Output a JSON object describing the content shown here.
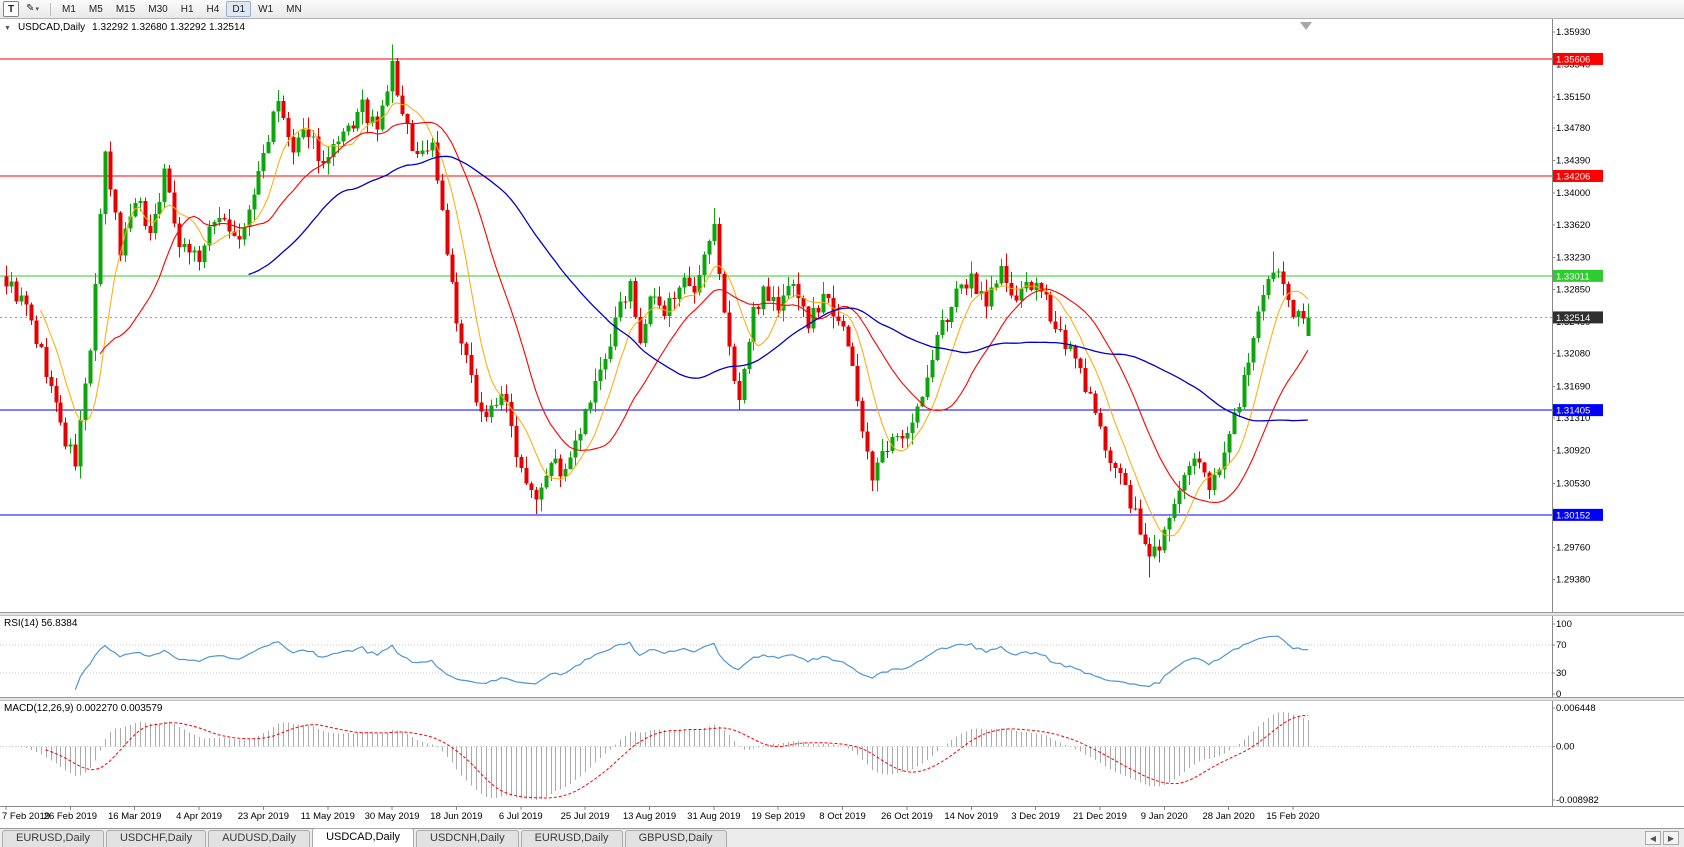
{
  "icons": {
    "collapse_triangle": "▼",
    "pencil": "✎",
    "chevron_down": "▾",
    "scroll_left": "◀",
    "scroll_right": "▶"
  },
  "toolbar": {
    "chart_type_label": "T",
    "timeframes": [
      {
        "label": "M1",
        "active": false
      },
      {
        "label": "M5",
        "active": false
      },
      {
        "label": "M15",
        "active": false
      },
      {
        "label": "M30",
        "active": false
      },
      {
        "label": "H1",
        "active": false
      },
      {
        "label": "H4",
        "active": false
      },
      {
        "label": "D1",
        "active": true
      },
      {
        "label": "W1",
        "active": false
      },
      {
        "label": "MN",
        "active": false
      }
    ]
  },
  "chart": {
    "header_symbol": "USDCAD,Daily",
    "header_ohlc": "1.32292 1.32680 1.32292 1.32514"
  },
  "indicators": {
    "rsi_label": "RSI(14) 56.8384",
    "macd_label": "MACD(12,26,9) 0.002270 0.003579"
  },
  "current_price": {
    "value": 1.32514,
    "label": "1.32514"
  },
  "tabs": [
    {
      "label": "EURUSD,Daily",
      "active": false
    },
    {
      "label": "USDCHF,Daily",
      "active": false
    },
    {
      "label": "AUDUSD,Daily",
      "active": false
    },
    {
      "label": "USDCAD,Daily",
      "active": true
    },
    {
      "label": "USDCNH,Daily",
      "active": false
    },
    {
      "label": "EURUSD,Daily",
      "active": false
    },
    {
      "label": "GBPUSD,Daily",
      "active": false
    }
  ],
  "colors": {
    "candle_up": "#0ca60c",
    "candle_down": "#e60000",
    "ma_fast": "#ffaa00",
    "ma_mid": "#ff0000",
    "ma_slow": "#0000c8",
    "level_red": "#fe0000",
    "level_green": "#2ecc2e",
    "level_blue": "#0000fe",
    "bid_badge": "#2f2f2f",
    "rsi_line": "#4f96d2",
    "macd_hist": "#ababab",
    "macd_signal": "#ff0000",
    "axis_text": "#000000"
  },
  "chart_data": {
    "type": "candlestick",
    "symbol": "USDCAD",
    "timeframe": "Daily",
    "title": "USDCAD,Daily",
    "last_candle": {
      "open": 1.32292,
      "high": 1.3268,
      "low": 1.32292,
      "close": 1.32514
    },
    "price_axis": {
      "min": 1.2899,
      "max": 1.3606,
      "tick_labels": [
        "1.35930",
        "1.35540",
        "1.35150",
        "1.34780",
        "1.34390",
        "1.34000",
        "1.33620",
        "1.33230",
        "1.32850",
        "1.32460",
        "1.32080",
        "1.31690",
        "1.31310",
        "1.30920",
        "1.30530",
        "1.30140",
        "1.29760",
        "1.29380"
      ]
    },
    "time_axis": {
      "candles_per_label": 13,
      "labels": [
        "7 Feb 2019",
        "26 Feb 2019",
        "16 Mar 2019",
        "4 Apr 2019",
        "23 Apr 2019",
        "11 May 2019",
        "30 May 2019",
        "18 Jun 2019",
        "6 Jul 2019",
        "25 Jul 2019",
        "13 Aug 2019",
        "31 Aug 2019",
        "19 Sep 2019",
        "8 Oct 2019",
        "26 Oct 2019",
        "14 Nov 2019",
        "3 Dec 2019",
        "21 Dec 2019",
        "9 Jan 2020",
        "28 Jan 2020",
        "15 Feb 2020"
      ]
    },
    "horizontal_levels": [
      {
        "value": 1.35606,
        "label": "1.35606",
        "color_key": "level_red"
      },
      {
        "value": 1.34206,
        "label": "1.34206",
        "color_key": "level_red"
      },
      {
        "value": 1.33011,
        "label": "1.33011",
        "color_key": "level_green"
      },
      {
        "value": 1.31405,
        "label": "1.31405",
        "color_key": "level_blue"
      },
      {
        "value": 1.30152,
        "label": "1.30152",
        "color_key": "level_blue"
      }
    ],
    "moving_averages": [
      {
        "period": 8,
        "color_key": "ma_fast",
        "width": 1
      },
      {
        "period": 20,
        "color_key": "ma_mid",
        "width": 1.1
      },
      {
        "period": 50,
        "color_key": "ma_slow",
        "width": 1.3
      }
    ],
    "oscillators": {
      "rsi": {
        "period": 14,
        "current": 56.8384,
        "levels": [
          70,
          30
        ],
        "scale": [
          {
            "text": "100",
            "value": 100
          },
          {
            "text": "70",
            "value": 70
          },
          {
            "text": "30",
            "value": 30
          },
          {
            "text": "0",
            "value": 0
          }
        ]
      },
      "macd": {
        "fast": 12,
        "slow": 26,
        "signal_period": 9,
        "current_macd": 0.00227,
        "current_signal": 0.003579,
        "scale_max": 0.006448,
        "scale_min": -0.008982,
        "scale": [
          {
            "text": "0.006448",
            "value": 0.006448
          },
          {
            "text": "0.00",
            "value": 0
          },
          {
            "text": "-0.008982",
            "value": -0.008982
          }
        ]
      }
    },
    "candles": {
      "count": 264,
      "render_seed": 9,
      "close_path_anchors": [
        [
          0,
          1.3295
        ],
        [
          4,
          1.3262
        ],
        [
          8,
          1.3188
        ],
        [
          12,
          1.3102
        ],
        [
          14,
          1.3078
        ],
        [
          17,
          1.3215
        ],
        [
          20,
          1.3442
        ],
        [
          23,
          1.3332
        ],
        [
          26,
          1.3398
        ],
        [
          29,
          1.3352
        ],
        [
          32,
          1.3422
        ],
        [
          35,
          1.3345
        ],
        [
          39,
          1.3322
        ],
        [
          43,
          1.3378
        ],
        [
          47,
          1.3338
        ],
        [
          50,
          1.3398
        ],
        [
          52,
          1.3448
        ],
        [
          55,
          1.3508
        ],
        [
          58,
          1.3445
        ],
        [
          61,
          1.3478
        ],
        [
          64,
          1.3432
        ],
        [
          68,
          1.3465
        ],
        [
          72,
          1.3502
        ],
        [
          75,
          1.3472
        ],
        [
          78,
          1.3552
        ],
        [
          80,
          1.349
        ],
        [
          83,
          1.3445
        ],
        [
          86,
          1.346
        ],
        [
          88,
          1.338
        ],
        [
          91,
          1.324
        ],
        [
          94,
          1.3175
        ],
        [
          97,
          1.313
        ],
        [
          100,
          1.3165
        ],
        [
          104,
          1.3072
        ],
        [
          107,
          1.3042
        ],
        [
          110,
          1.3082
        ],
        [
          113,
          1.3062
        ],
        [
          117,
          1.3132
        ],
        [
          120,
          1.3182
        ],
        [
          123,
          1.3242
        ],
        [
          126,
          1.3298
        ],
        [
          128,
          1.3212
        ],
        [
          130,
          1.3278
        ],
        [
          133,
          1.3252
        ],
        [
          136,
          1.3298
        ],
        [
          139,
          1.3272
        ],
        [
          141,
          1.3318
        ],
        [
          143,
          1.3355
        ],
        [
          146,
          1.321
        ],
        [
          148,
          1.3155
        ],
        [
          151,
          1.3255
        ],
        [
          153,
          1.3288
        ],
        [
          156,
          1.3262
        ],
        [
          159,
          1.3298
        ],
        [
          162,
          1.3242
        ],
        [
          165,
          1.3278
        ],
        [
          169,
          1.3248
        ],
        [
          172,
          1.3152
        ],
        [
          175,
          1.3062
        ],
        [
          178,
          1.3092
        ],
        [
          182,
          1.3122
        ],
        [
          185,
          1.3152
        ],
        [
          188,
          1.3228
        ],
        [
          191,
          1.3268
        ],
        [
          195,
          1.3298
        ],
        [
          198,
          1.3272
        ],
        [
          201,
          1.3308
        ],
        [
          204,
          1.3262
        ],
        [
          206,
          1.3298
        ],
        [
          210,
          1.3268
        ],
        [
          214,
          1.3222
        ],
        [
          218,
          1.3172
        ],
        [
          221,
          1.3112
        ],
        [
          225,
          1.3062
        ],
        [
          228,
          1.3012
        ],
        [
          231,
          1.2962
        ],
        [
          234,
          1.2992
        ],
        [
          237,
          1.3048
        ],
        [
          240,
          1.3078
        ],
        [
          243,
          1.3052
        ],
        [
          247,
          1.3108
        ],
        [
          250,
          1.3178
        ],
        [
          253,
          1.3248
        ],
        [
          256,
          1.3308
        ],
        [
          258,
          1.3292
        ],
        [
          260,
          1.3262
        ],
        [
          263,
          1.32514
        ]
      ],
      "forced_extremes": {
        "14": {
          "low": 1.3068
        },
        "78": {
          "high": 1.3578
        },
        "107": {
          "low": 1.30162
        },
        "143": {
          "high": 1.3382
        },
        "175": {
          "low": 1.3044
        },
        "231": {
          "low": 1.294
        },
        "256": {
          "high": 1.333
        },
        "263": {
          "open": 1.32292,
          "high": 1.3268,
          "low": 1.32292,
          "close": 1.32514
        }
      }
    }
  }
}
